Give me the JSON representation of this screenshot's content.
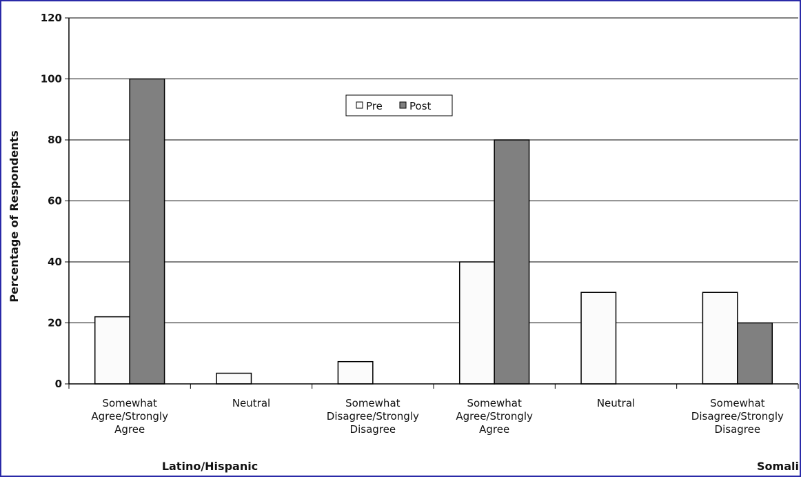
{
  "chart_data": {
    "type": "bar",
    "ylabel": "Percentage of Respondents",
    "ylim": [
      0,
      120
    ],
    "yticks": [
      "0",
      "20",
      "40",
      "60",
      "80",
      "100",
      "120"
    ],
    "grid": true,
    "legend_position": "top-center",
    "groups": [
      {
        "name": "Latino/Hispanic",
        "categories": [
          "Somewhat Agree/Strongly Agree",
          "Neutral",
          "Somewhat Disagree/Strongly Disagree"
        ]
      },
      {
        "name": "Somali",
        "categories": [
          "Somewhat Agree/Strongly Agree",
          "Neutral",
          "Somewhat Disagree/Strongly Disagree"
        ]
      }
    ],
    "categories": [
      "Somewhat Agree/Strongly Agree",
      "Neutral",
      "Somewhat Disagree/Strongly Disagree",
      "Somewhat Agree/Strongly Agree",
      "Neutral",
      "Somewhat Disagree/Strongly Disagree"
    ],
    "category_lines": [
      [
        "Somewhat",
        "Agree/Strongly",
        "Agree"
      ],
      [
        "Neutral"
      ],
      [
        "Somewhat",
        "Disagree/Strongly",
        "Disagree"
      ],
      [
        "Somewhat",
        "Agree/Strongly",
        "Agree"
      ],
      [
        "Neutral"
      ],
      [
        "Somewhat",
        "Disagree/Strongly",
        "Disagree"
      ]
    ],
    "series": [
      {
        "name": "Pre",
        "color": "#fbfbfb",
        "values": [
          22,
          3.5,
          7.3,
          40,
          30,
          30
        ]
      },
      {
        "name": "Post",
        "color": "#808080",
        "values": [
          100,
          0,
          0,
          80,
          0,
          20
        ]
      }
    ]
  }
}
